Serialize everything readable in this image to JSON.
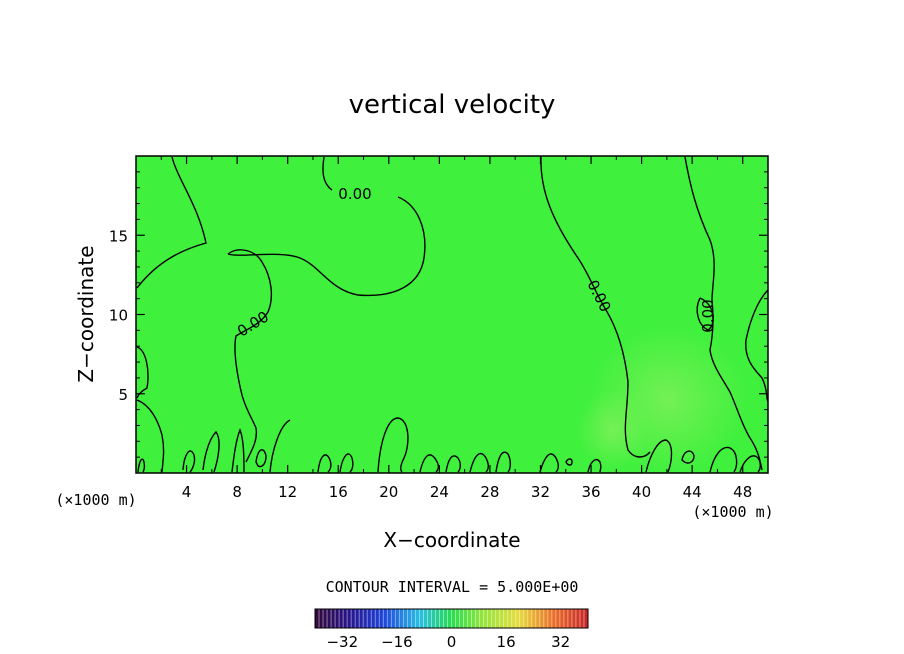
{
  "chart_data": {
    "type": "heatmap",
    "title": "vertical velocity",
    "xlabel": "X−coordinate",
    "ylabel": "Z−coordinate",
    "x_unit_left": "(×1000 m)",
    "x_unit_right": "(×1000 m)",
    "xlim": [
      0,
      50
    ],
    "ylim": [
      0,
      20
    ],
    "x_ticks": [
      "4",
      "8",
      "12",
      "16",
      "20",
      "24",
      "28",
      "32",
      "36",
      "40",
      "44",
      "48"
    ],
    "y_ticks": [
      "5",
      "10",
      "15"
    ],
    "field_value_range": [
      -1,
      4
    ],
    "contour_level_labels": [
      "0.00",
      "0.00",
      "0.00",
      "0.00"
    ],
    "contour_interval_text": "CONTOUR INTERVAL = 5.000E+00",
    "colorbar": {
      "ticks": [
        "−32",
        "−16",
        "0",
        "16",
        "32"
      ],
      "range": [
        -40,
        40
      ]
    },
    "colors": {
      "field_main": "#3ff03d",
      "field_positive": "#6ef04a",
      "contour": "#000000"
    }
  }
}
